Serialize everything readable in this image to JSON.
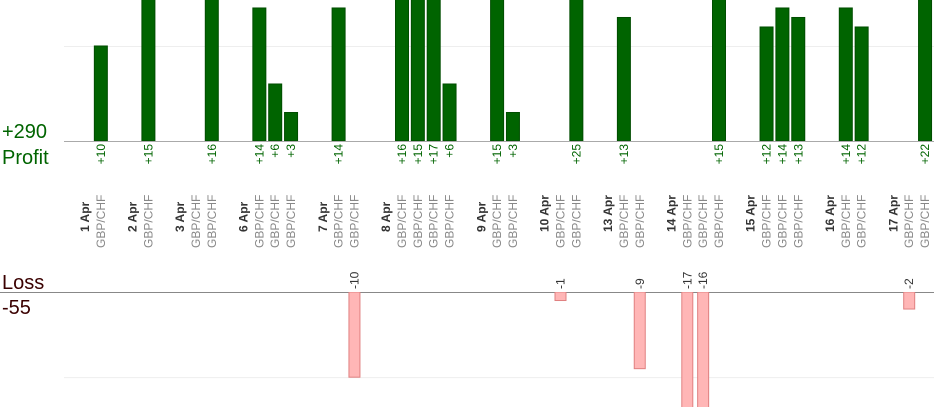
{
  "summary": {
    "profit_total": "+290",
    "profit_label": "Profit",
    "loss_label": "Loss",
    "loss_total": "-55"
  },
  "profit_axis": {
    "ylim": [
      0,
      14.84
    ],
    "yticks": [
      10
    ],
    "color": "#006400"
  },
  "loss_axis": {
    "ylim": [
      0,
      -13.5
    ],
    "yticks": [
      -10
    ],
    "color": "#ffb6b6"
  },
  "days": [
    {
      "date": "1 Apr",
      "trades": [
        {
          "pair": "GBP/CHF",
          "value": 10,
          "value_label": "+10"
        }
      ]
    },
    {
      "date": "2 Apr",
      "trades": [
        {
          "pair": "GBP/CHF",
          "value": 15,
          "value_label": "+15"
        }
      ]
    },
    {
      "date": "3 Apr",
      "trades": [
        {
          "pair": "GBP/CHF",
          "value": null
        },
        {
          "pair": "GBP/CHF",
          "value": 16,
          "value_label": "+16"
        }
      ]
    },
    {
      "date": "6 Apr",
      "trades": [
        {
          "pair": "GBP/CHF",
          "value": 14,
          "value_label": "+14"
        },
        {
          "pair": "GBP/CHF",
          "value": 6,
          "value_label": "+6"
        },
        {
          "pair": "GBP/CHF",
          "value": 3,
          "value_label": "+3"
        }
      ]
    },
    {
      "date": "7 Apr",
      "trades": [
        {
          "pair": "GBP/CHF",
          "value": 14,
          "value_label": "+14"
        },
        {
          "pair": "GBP/CHF",
          "value": -10
        }
      ]
    },
    {
      "date": "8 Apr",
      "trades": [
        {
          "pair": "GBP/CHF",
          "value": 16,
          "value_label": "+16"
        },
        {
          "pair": "GBP/CHF",
          "value": 15,
          "value_label": "+15"
        },
        {
          "pair": "GBP/CHF",
          "value": 17,
          "value_label": "+17"
        },
        {
          "pair": "GBP/CHF",
          "value": 6,
          "value_label": "+6"
        }
      ]
    },
    {
      "date": "9 Apr",
      "trades": [
        {
          "pair": "GBP/CHF",
          "value": 15,
          "value_label": "+15"
        },
        {
          "pair": "GBP/CHF",
          "value": 3,
          "value_label": "+3"
        }
      ]
    },
    {
      "date": "10 Apr",
      "trades": [
        {
          "pair": "GBP/CHF",
          "value": -1
        },
        {
          "pair": "GBP/CHF",
          "value": 25,
          "value_label": "+25"
        }
      ]
    },
    {
      "date": "13 Apr",
      "trades": [
        {
          "pair": "GBP/CHF",
          "value": 13,
          "value_label": "+13"
        },
        {
          "pair": "GBP/CHF",
          "value": -9
        }
      ]
    },
    {
      "date": "14 Apr",
      "trades": [
        {
          "pair": "GBP/CHF",
          "value": -17
        },
        {
          "pair": "GBP/CHF",
          "value": -16
        },
        {
          "pair": "GBP/CHF",
          "value": 15,
          "value_label": "+15"
        }
      ]
    },
    {
      "date": "15 Apr",
      "trades": [
        {
          "pair": "GBP/CHF",
          "value": 12,
          "value_label": "+12"
        },
        {
          "pair": "GBP/CHF",
          "value": 14,
          "value_label": "+14"
        },
        {
          "pair": "GBP/CHF",
          "value": 13,
          "value_label": "+13"
        }
      ]
    },
    {
      "date": "16 Apr",
      "trades": [
        {
          "pair": "GBP/CHF",
          "value": 14,
          "value_label": "+14"
        },
        {
          "pair": "GBP/CHF",
          "value": 12,
          "value_label": "+12"
        }
      ]
    },
    {
      "date": "17 Apr",
      "trades": [
        {
          "pair": "GBP/CHF",
          "value": -2
        },
        {
          "pair": "GBP/CHF",
          "value": 22,
          "value_label": "+22"
        }
      ]
    }
  ]
}
